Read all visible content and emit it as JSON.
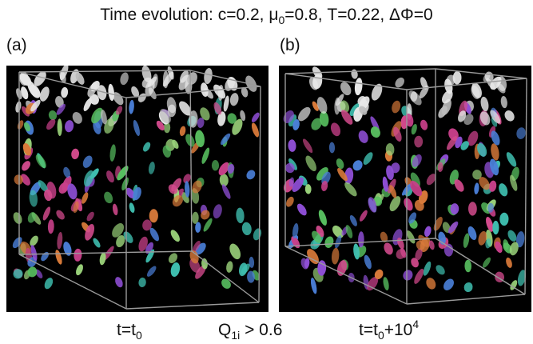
{
  "title": {
    "prefix": "Time evolution: c=0.2, ",
    "mu_symbol": "μ",
    "mu_sub": "0",
    "mu_value": "=0.8, T=0.22, ",
    "delta_phi": "ΔΦ=0"
  },
  "panels": [
    {
      "label": "(a)",
      "caption_base": "t=t",
      "caption_sub": "0",
      "caption_tail": "",
      "caption_sup": ""
    },
    {
      "label": "(b)",
      "caption_base": "t=t",
      "caption_sub": "0",
      "caption_tail": "+10",
      "caption_sup": "4"
    }
  ],
  "threshold": {
    "symbol": "Q",
    "sub": "1i",
    "rest": " > 0.6"
  },
  "colors": {
    "background": "#000000",
    "box_edge": "#9a9a9a",
    "palette": [
      "#e8e8e8",
      "#bdbdbd",
      "#d24a8c",
      "#8f4fd6",
      "#3fbfb0",
      "#58c060",
      "#d97a3a",
      "#4a7fd8",
      "#c9408a",
      "#9ad27a"
    ]
  }
}
